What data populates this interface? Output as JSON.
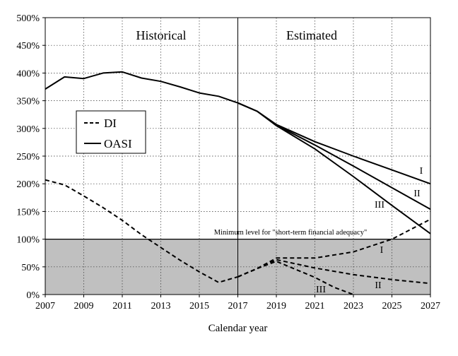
{
  "chart_data": {
    "type": "line",
    "title": "",
    "xlabel": "Calendar year",
    "ylabel": "",
    "xlim": [
      2007,
      2027
    ],
    "ylim": [
      0,
      500
    ],
    "x_ticks": [
      2007,
      2009,
      2011,
      2013,
      2015,
      2017,
      2019,
      2021,
      2023,
      2025,
      2027
    ],
    "x_tick_labels": [
      "2007",
      "2009",
      "2011",
      "2013",
      "2015",
      "2017",
      "2019",
      "2021",
      "2023",
      "2025",
      "2027"
    ],
    "y_ticks": [
      0,
      50,
      100,
      150,
      200,
      250,
      300,
      350,
      400,
      450,
      500
    ],
    "y_tick_labels": [
      "0%",
      "50%",
      "100%",
      "150%",
      "200%",
      "250%",
      "300%",
      "350%",
      "400%",
      "450%",
      "500%"
    ],
    "grid": true,
    "divider_year": 2017,
    "period_labels": {
      "historical": "Historical",
      "estimated": "Estimated"
    },
    "shaded_band": {
      "from": 0,
      "to": 100,
      "label": "Minimum level for \"short-term financial adequacy\""
    },
    "legend": {
      "position": "left-middle",
      "entries": [
        {
          "label": "DI",
          "style": "dashed"
        },
        {
          "label": "OASI",
          "style": "solid"
        }
      ]
    },
    "series": [
      {
        "name": "OASI historical",
        "fund": "OASI",
        "style": "solid",
        "label": "",
        "x": [
          2007,
          2008,
          2009,
          2010,
          2011,
          2012,
          2013,
          2014,
          2015,
          2016,
          2017
        ],
        "values": [
          371,
          393,
          390,
          400,
          402,
          391,
          385,
          375,
          364,
          358,
          346
        ]
      },
      {
        "name": "OASI I",
        "fund": "OASI",
        "style": "solid",
        "label": "I",
        "x": [
          2017,
          2018,
          2019,
          2021,
          2023,
          2025,
          2027
        ],
        "values": [
          346,
          331,
          307,
          276,
          250,
          225,
          200
        ]
      },
      {
        "name": "OASI II",
        "fund": "OASI",
        "style": "solid",
        "label": "II",
        "x": [
          2017,
          2018,
          2019,
          2021,
          2023,
          2025,
          2027
        ],
        "values": [
          346,
          331,
          306,
          270,
          232,
          193,
          154
        ]
      },
      {
        "name": "OASI III",
        "fund": "OASI",
        "style": "solid",
        "label": "III",
        "x": [
          2017,
          2018,
          2019,
          2021,
          2023,
          2025,
          2027
        ],
        "values": [
          346,
          331,
          305,
          263,
          213,
          161,
          110
        ]
      },
      {
        "name": "DI historical",
        "fund": "DI",
        "style": "dashed",
        "label": "",
        "x": [
          2007,
          2008,
          2009,
          2010,
          2011,
          2012,
          2013,
          2014,
          2015,
          2016,
          2017
        ],
        "values": [
          207,
          198,
          178,
          157,
          134,
          108,
          85,
          62,
          41,
          22,
          32
        ]
      },
      {
        "name": "DI I",
        "fund": "DI",
        "style": "dashed",
        "label": "I",
        "x": [
          2017,
          2018,
          2019,
          2021,
          2023,
          2025,
          2027
        ],
        "values": [
          32,
          47,
          66,
          66,
          77,
          100,
          136
        ]
      },
      {
        "name": "DI II",
        "fund": "DI",
        "style": "dashed",
        "label": "II",
        "x": [
          2017,
          2018,
          2019,
          2021,
          2023,
          2025,
          2027
        ],
        "values": [
          32,
          47,
          63,
          48,
          36,
          27,
          20
        ]
      },
      {
        "name": "DI III",
        "fund": "DI",
        "style": "dashed",
        "label": "III",
        "x": [
          2017,
          2018,
          2019,
          2021,
          2022,
          2023
        ],
        "values": [
          32,
          47,
          60,
          31,
          13,
          0
        ]
      }
    ]
  }
}
